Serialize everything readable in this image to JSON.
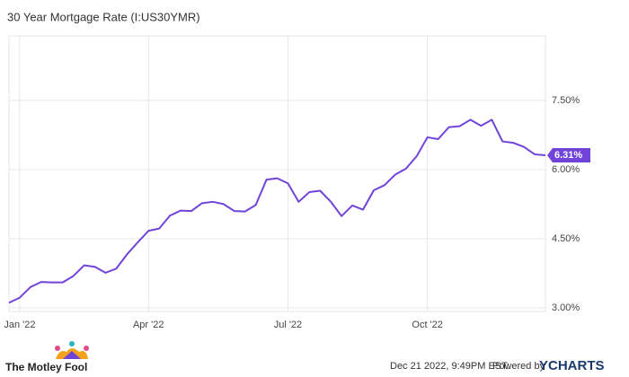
{
  "chart_data": {
    "type": "line",
    "title": "30 Year Mortgage Rate (I:US30YMR)",
    "categories": [
      null,
      "Jan '22",
      null,
      null,
      null,
      null,
      null,
      null,
      null,
      null,
      null,
      null,
      null,
      "Apr '22",
      null,
      null,
      null,
      null,
      null,
      null,
      null,
      null,
      null,
      null,
      null,
      null,
      "Jul '22",
      null,
      null,
      null,
      null,
      null,
      null,
      null,
      null,
      null,
      null,
      null,
      null,
      "Oct '22",
      null,
      null,
      null,
      null,
      null,
      null,
      null,
      null,
      null,
      null,
      null
    ],
    "series": [
      {
        "name": "30 Year Mortgage Rate",
        "color": "#7043d9",
        "values": [
          3.11,
          3.22,
          3.45,
          3.56,
          3.55,
          3.55,
          3.69,
          3.92,
          3.89,
          3.76,
          3.85,
          4.16,
          4.42,
          4.67,
          4.72,
          5.0,
          5.11,
          5.1,
          5.27,
          5.3,
          5.25,
          5.1,
          5.09,
          5.23,
          5.78,
          5.81,
          5.7,
          5.3,
          5.51,
          5.54,
          5.3,
          4.99,
          5.22,
          5.13,
          5.55,
          5.66,
          5.89,
          6.02,
          6.29,
          6.7,
          6.66,
          6.92,
          6.94,
          7.08,
          6.95,
          7.08,
          6.61,
          6.58,
          6.49,
          6.33,
          6.31
        ],
        "value_labels": [
          null,
          null,
          null,
          null,
          null,
          null,
          null,
          null,
          null,
          null,
          null,
          null,
          null,
          null,
          null,
          null,
          null,
          null,
          null,
          null,
          null,
          null,
          null,
          null,
          null,
          null,
          null,
          null,
          null,
          null,
          null,
          null,
          null,
          null,
          null,
          null,
          null,
          null,
          null,
          null,
          null,
          null,
          null,
          null,
          null,
          null,
          null,
          null,
          null,
          null,
          "6.31%"
        ]
      }
    ],
    "ylim": [
      2.92,
      8.9
    ],
    "yticks": [
      {
        "value": 3,
        "label": "3.00%"
      },
      {
        "value": 4.5,
        "label": "4.50%"
      },
      {
        "value": 6,
        "label": "6.00%"
      },
      {
        "value": 7.5,
        "label": "7.50%"
      }
    ],
    "grid": true
  },
  "footer": {
    "brand": "The Motley Fool",
    "timestamp": "Dec 21 2022, 9:49PM EST.",
    "powered_by": "Powered by",
    "provider": "YCHARTS"
  }
}
